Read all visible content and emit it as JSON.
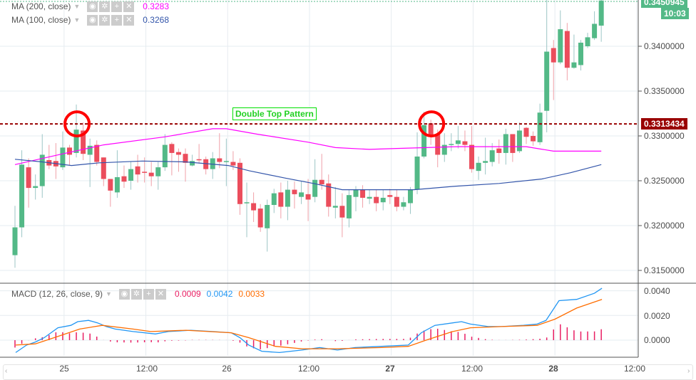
{
  "legend": {
    "ma200": {
      "label": "MA (200, close)",
      "value": "0.3283",
      "color": "#ff00ff"
    },
    "ma100": {
      "label": "MA (100, close)",
      "value": "0.3268",
      "color": "#3355aa"
    },
    "macd": {
      "label": "MACD (12, 26, close, 9)",
      "hist": "0.0009",
      "macd": "0.0042",
      "signal": "0.0033"
    }
  },
  "price_axis": {
    "labels": [
      "0.3400000",
      "0.3350000",
      "0.3300000",
      "0.3250000",
      "0.3200000",
      "0.3150000"
    ],
    "last_price": "0.3450945",
    "countdown": "10:03",
    "level_price": "0.3313434"
  },
  "macd_axis": {
    "labels": [
      "0.0040",
      "0.0020",
      "0.0000"
    ]
  },
  "x_axis": {
    "labels": [
      "25",
      "12:00",
      "26",
      "12:00",
      "27",
      "12:00",
      "28",
      "12:00"
    ]
  },
  "annotation": {
    "text": "Double Top Pattern"
  },
  "colors": {
    "up": "#53b987",
    "down": "#eb4d5c",
    "level": "#990000",
    "circle": "#ff0000",
    "macd": "#2196f3",
    "signal": "#ff6d00",
    "hist": "#e91e63"
  },
  "chart_data": {
    "type": "candlestick",
    "title": "",
    "level_line": 0.3313434,
    "ylim": [
      0.3135,
      0.3452
    ],
    "yticks": [
      0.34,
      0.335,
      0.33,
      0.325,
      0.32,
      0.315
    ],
    "candles_ohlc": [
      [
        0.3167,
        0.3222,
        0.3153,
        0.3198
      ],
      [
        0.3198,
        0.3284,
        0.3187,
        0.3268
      ],
      [
        0.3265,
        0.3275,
        0.322,
        0.3242
      ],
      [
        0.3242,
        0.3257,
        0.3229,
        0.3244
      ],
      [
        0.3244,
        0.3302,
        0.3231,
        0.3279
      ],
      [
        0.3273,
        0.329,
        0.3263,
        0.3267
      ],
      [
        0.3272,
        0.3292,
        0.3252,
        0.3266
      ],
      [
        0.3265,
        0.3305,
        0.3262,
        0.3287
      ],
      [
        0.3287,
        0.329,
        0.3267,
        0.3279
      ],
      [
        0.3281,
        0.3335,
        0.3276,
        0.3307
      ],
      [
        0.3306,
        0.3315,
        0.3273,
        0.328
      ],
      [
        0.3279,
        0.3297,
        0.3243,
        0.3289
      ],
      [
        0.329,
        0.3295,
        0.3267,
        0.3271
      ],
      [
        0.3276,
        0.3276,
        0.3244,
        0.3252
      ],
      [
        0.3252,
        0.3252,
        0.3221,
        0.3239
      ],
      [
        0.3237,
        0.3284,
        0.3231,
        0.3254
      ],
      [
        0.3255,
        0.3267,
        0.3242,
        0.3249
      ],
      [
        0.325,
        0.3271,
        0.324,
        0.3263
      ],
      [
        0.3266,
        0.3279,
        0.3248,
        0.3257
      ],
      [
        0.326,
        0.3276,
        0.3248,
        0.3259
      ],
      [
        0.3259,
        0.3271,
        0.3244,
        0.3255
      ],
      [
        0.3255,
        0.3271,
        0.324,
        0.3265
      ],
      [
        0.3265,
        0.3302,
        0.3261,
        0.329
      ],
      [
        0.3291,
        0.3293,
        0.3256,
        0.3281
      ],
      [
        0.3282,
        0.3286,
        0.326,
        0.3279
      ],
      [
        0.328,
        0.3286,
        0.3249,
        0.327
      ],
      [
        0.3267,
        0.3279,
        0.3266,
        0.3272
      ],
      [
        0.3274,
        0.3291,
        0.3269,
        0.3273
      ],
      [
        0.3274,
        0.3277,
        0.3257,
        0.3263
      ],
      [
        0.3263,
        0.3282,
        0.3252,
        0.3275
      ],
      [
        0.3275,
        0.3303,
        0.3264,
        0.3271
      ],
      [
        0.3271,
        0.3297,
        0.3244,
        0.3272
      ],
      [
        0.3271,
        0.3283,
        0.3262,
        0.3267
      ],
      [
        0.327,
        0.3275,
        0.3212,
        0.3224
      ],
      [
        0.3225,
        0.3248,
        0.3187,
        0.3226
      ],
      [
        0.3225,
        0.3237,
        0.3204,
        0.3217
      ],
      [
        0.3219,
        0.3224,
        0.3193,
        0.3198
      ],
      [
        0.3197,
        0.3229,
        0.3171,
        0.3223
      ],
      [
        0.3223,
        0.3241,
        0.3214,
        0.3236
      ],
      [
        0.3237,
        0.3248,
        0.3208,
        0.3221
      ],
      [
        0.3221,
        0.325,
        0.3206,
        0.324
      ],
      [
        0.324,
        0.3249,
        0.3219,
        0.3235
      ],
      [
        0.3232,
        0.3249,
        0.3224,
        0.3237
      ],
      [
        0.3235,
        0.3252,
        0.3205,
        0.3229
      ],
      [
        0.3232,
        0.3274,
        0.3226,
        0.3251
      ],
      [
        0.3251,
        0.328,
        0.324,
        0.3246
      ],
      [
        0.3247,
        0.3257,
        0.321,
        0.3221
      ],
      [
        0.322,
        0.3243,
        0.3208,
        0.3222
      ],
      [
        0.3222,
        0.3236,
        0.3187,
        0.3209
      ],
      [
        0.3208,
        0.324,
        0.3198,
        0.3234
      ],
      [
        0.3232,
        0.3244,
        0.3216,
        0.324
      ],
      [
        0.324,
        0.3245,
        0.322,
        0.3231
      ],
      [
        0.323,
        0.324,
        0.3224,
        0.3232
      ],
      [
        0.3232,
        0.324,
        0.3216,
        0.3225
      ],
      [
        0.3226,
        0.324,
        0.3217,
        0.3231
      ],
      [
        0.3234,
        0.3241,
        0.3224,
        0.3232
      ],
      [
        0.3232,
        0.324,
        0.3216,
        0.3221
      ],
      [
        0.3221,
        0.3232,
        0.3217,
        0.3226
      ],
      [
        0.3225,
        0.3243,
        0.3213,
        0.324
      ],
      [
        0.324,
        0.3304,
        0.3235,
        0.3277
      ],
      [
        0.3277,
        0.3327,
        0.3275,
        0.3312
      ],
      [
        0.3314,
        0.3318,
        0.329,
        0.33
      ],
      [
        0.3302,
        0.3307,
        0.3265,
        0.3279
      ],
      [
        0.3279,
        0.3303,
        0.3271,
        0.329
      ],
      [
        0.329,
        0.3303,
        0.3283,
        0.3291
      ],
      [
        0.3291,
        0.3311,
        0.3286,
        0.3295
      ],
      [
        0.3294,
        0.3306,
        0.3283,
        0.329
      ],
      [
        0.329,
        0.3311,
        0.3259,
        0.3263
      ],
      [
        0.3261,
        0.3277,
        0.3251,
        0.327
      ],
      [
        0.327,
        0.3298,
        0.3257,
        0.3272
      ],
      [
        0.3271,
        0.3292,
        0.3266,
        0.3284
      ],
      [
        0.3286,
        0.3296,
        0.3269,
        0.3281
      ],
      [
        0.3281,
        0.3308,
        0.3268,
        0.3302
      ],
      [
        0.3302,
        0.3302,
        0.3271,
        0.3281
      ],
      [
        0.3283,
        0.3315,
        0.3281,
        0.3306
      ],
      [
        0.3309,
        0.331,
        0.3291,
        0.3299
      ],
      [
        0.33,
        0.3305,
        0.3289,
        0.3294
      ],
      [
        0.3293,
        0.3336,
        0.329,
        0.3326
      ],
      [
        0.3328,
        0.3452,
        0.3304,
        0.3394
      ],
      [
        0.3398,
        0.3407,
        0.334,
        0.3382
      ],
      [
        0.3382,
        0.344,
        0.338,
        0.3419
      ],
      [
        0.3417,
        0.3426,
        0.3362,
        0.3376
      ],
      [
        0.3376,
        0.3413,
        0.3375,
        0.3382
      ],
      [
        0.3379,
        0.3407,
        0.3373,
        0.3404
      ],
      [
        0.34,
        0.3415,
        0.3398,
        0.341
      ],
      [
        0.3409,
        0.3439,
        0.3407,
        0.3425
      ],
      [
        0.3423,
        0.3452,
        0.3405,
        0.3451
      ]
    ],
    "ma200": [
      [
        0,
        0.3268
      ],
      [
        7,
        0.328
      ],
      [
        13,
        0.329
      ],
      [
        22,
        0.3299
      ],
      [
        29,
        0.3308
      ],
      [
        31,
        0.3308
      ],
      [
        35.5,
        0.3302
      ],
      [
        43,
        0.3293
      ],
      [
        47,
        0.3287
      ],
      [
        52,
        0.3285
      ],
      [
        56,
        0.3286
      ],
      [
        65,
        0.3288
      ],
      [
        71,
        0.3288
      ],
      [
        75,
        0.3288
      ],
      [
        79,
        0.3283
      ],
      [
        86,
        0.3283
      ]
    ],
    "ma100": [
      [
        0,
        0.3274
      ],
      [
        4,
        0.3271
      ],
      [
        8.3,
        0.3267
      ],
      [
        12.4,
        0.327
      ],
      [
        18.7,
        0.3272
      ],
      [
        25,
        0.3271
      ],
      [
        31.3,
        0.3267
      ],
      [
        34.4,
        0.3261
      ],
      [
        39.6,
        0.3253
      ],
      [
        43.8,
        0.3247
      ],
      [
        48,
        0.324
      ],
      [
        52.2,
        0.324
      ],
      [
        58.5,
        0.324
      ],
      [
        64.7,
        0.3244
      ],
      [
        71,
        0.3247
      ],
      [
        77.3,
        0.3252
      ],
      [
        81.5,
        0.3259
      ],
      [
        86,
        0.3268
      ]
    ],
    "macd_line": [
      [
        0.1,
        -0.001
      ],
      [
        1.7,
        -0.0004
      ],
      [
        3.0,
        -0.00015
      ],
      [
        4.3,
        0.0002
      ],
      [
        6.3,
        0.001
      ],
      [
        8.2,
        0.0012
      ],
      [
        9.2,
        0.0015
      ],
      [
        10.8,
        0.0016
      ],
      [
        12.1,
        0.0014
      ],
      [
        13.4,
        0.0011
      ],
      [
        14.7,
        0.0009
      ],
      [
        17.3,
        0.0007
      ],
      [
        20.6,
        0.0005
      ],
      [
        22.5,
        0.0007
      ],
      [
        25.8,
        0.0008
      ],
      [
        29.0,
        0.0007
      ],
      [
        31.7,
        0.0006
      ],
      [
        33.0,
        0.0002
      ],
      [
        34.3,
        -0.0004
      ],
      [
        36.2,
        -0.0009
      ],
      [
        38.8,
        -0.001
      ],
      [
        42.1,
        -0.0008
      ],
      [
        44.7,
        -0.0006
      ],
      [
        47.3,
        -0.0008
      ],
      [
        49.9,
        -0.0006
      ],
      [
        53.8,
        -0.0005
      ],
      [
        57.7,
        -0.0004
      ],
      [
        59.6,
        0.0006
      ],
      [
        61.6,
        0.0012
      ],
      [
        65.5,
        0.0015
      ],
      [
        66.8,
        0.0013
      ],
      [
        69.4,
        0.0011
      ],
      [
        71.4,
        0.0011
      ],
      [
        74.6,
        0.0012
      ],
      [
        76.6,
        0.0013
      ],
      [
        77.9,
        0.0016
      ],
      [
        79.8,
        0.0032
      ],
      [
        82.4,
        0.0033
      ],
      [
        85.0,
        0.0038
      ],
      [
        86.1,
        0.0042
      ]
    ],
    "signal_line": [
      [
        0.1,
        -0.0004
      ],
      [
        3.0,
        -0.0003
      ],
      [
        6.3,
        0.0003
      ],
      [
        9.5,
        0.0009
      ],
      [
        12.8,
        0.0012
      ],
      [
        17.3,
        0.0009
      ],
      [
        19.9,
        0.0007
      ],
      [
        25.1,
        0.0008
      ],
      [
        31.7,
        0.0006
      ],
      [
        34.3,
        0.0002
      ],
      [
        38.2,
        -0.0005
      ],
      [
        42.1,
        -0.0007
      ],
      [
        47.3,
        -0.0007
      ],
      [
        53.8,
        -0.0006
      ],
      [
        57.7,
        -0.0005
      ],
      [
        60.3,
        0.0
      ],
      [
        64.2,
        0.0007
      ],
      [
        66.8,
        0.001
      ],
      [
        71.4,
        0.0011
      ],
      [
        76.6,
        0.0012
      ],
      [
        79.2,
        0.0017
      ],
      [
        82.4,
        0.0026
      ],
      [
        86.1,
        0.0033
      ]
    ],
    "macd_ylim": [
      -0.0013,
      0.0046
    ],
    "xtick_labels": [
      "25",
      "12:00",
      "26",
      "12:00",
      "27",
      "12:00",
      "28",
      "12:00"
    ],
    "xtick_candle_index": [
      7.2,
      19.2,
      31.2,
      43.2,
      55.2,
      67.2,
      79.2,
      91.2
    ],
    "double_top_candles": [
      9,
      61
    ]
  }
}
